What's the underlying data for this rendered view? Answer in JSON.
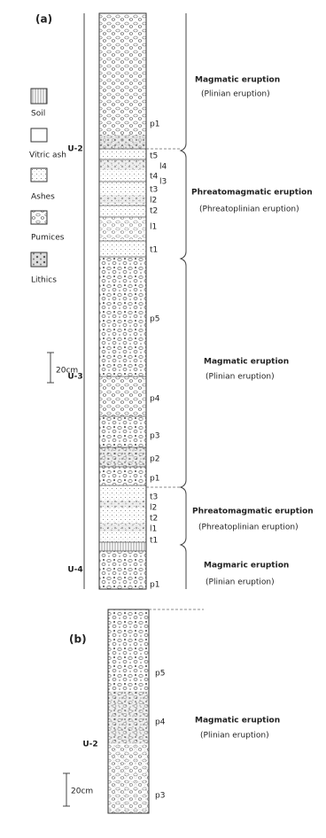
{
  "panel_a": {
    "label": "(a)",
    "legend": [
      "Soil",
      "Vitric ash",
      "Ashes",
      "Pumices",
      "Lithics"
    ],
    "scale": "20cm",
    "units": [
      "U-2",
      "U-3",
      "U-4"
    ],
    "layers": [
      "p1",
      "t5",
      "l4",
      "t4",
      "l3",
      "t3",
      "l2",
      "t2",
      "l1",
      "t1",
      "p5",
      "p4",
      "p3",
      "p2",
      "p1",
      "t3",
      "l2",
      "t2",
      "l1",
      "t1",
      "p1"
    ],
    "eruptions": [
      {
        "title": "Magmatic eruption",
        "subtitle": "(Plinian eruption)"
      },
      {
        "title": "Phreatomagmatic eruption",
        "subtitle": "(Phreatoplinian eruption)"
      },
      {
        "title": "Magmatic eruption",
        "subtitle": "(Plinian eruption)"
      },
      {
        "title": "Phreatomagmatic eruption",
        "subtitle": "(Phreatoplinian eruption)"
      },
      {
        "title": "Magmaric eruption",
        "subtitle": "(Plinian eruption)"
      }
    ]
  },
  "panel_b": {
    "label": "(b)",
    "scale": "20cm",
    "unit": "U-2",
    "layers": [
      "p5",
      "p4",
      "p3"
    ],
    "eruption": {
      "title": "Magmatic eruption",
      "subtitle": "(Plinian eruption)"
    }
  }
}
